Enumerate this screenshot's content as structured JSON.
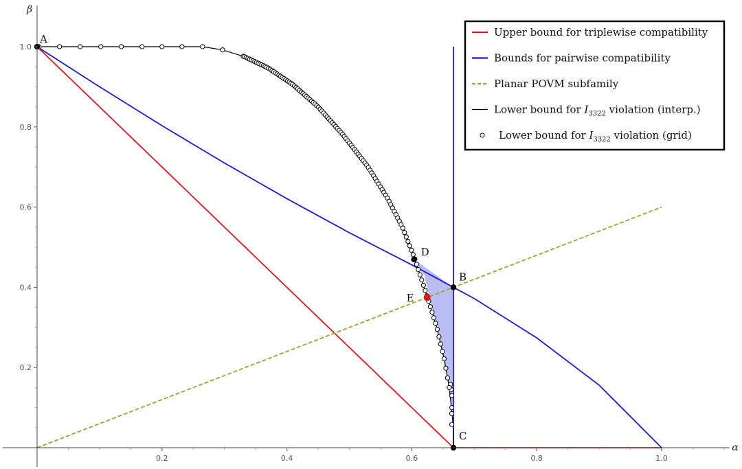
{
  "chart_data": {
    "type": "line",
    "title": "",
    "xlabel": "α",
    "ylabel": "β",
    "xlim": [
      0,
      1.12
    ],
    "ylim": [
      0,
      1.05
    ],
    "x_ticks": [
      "0.2",
      "0.4",
      "0.6",
      "0.8",
      "1.0"
    ],
    "y_ticks": [
      "0.2",
      "0.4",
      "0.6",
      "0.8",
      "1.0"
    ],
    "x_tick_values": [
      0.2,
      0.4,
      0.6,
      0.8,
      1.0
    ],
    "y_tick_values": [
      0.2,
      0.4,
      0.6,
      0.8,
      1.0
    ],
    "legend_position": "top-right",
    "colors": {
      "triplewise": "#e8141c",
      "pairwise": "#1a1ae0",
      "planar": "#8aad2c",
      "interp": "#000000",
      "shade": "#aeb0f2",
      "point_e": "#e8141c"
    },
    "series": [
      {
        "name": "Upper bound for triplewise compatibility",
        "style": "solid",
        "color_key": "triplewise",
        "points": [
          [
            0,
            1
          ],
          [
            0.6667,
            0
          ],
          [
            1.0,
            0
          ]
        ]
      },
      {
        "name": "Bounds for pairwise compatibility",
        "style": "solid",
        "color_key": "pairwise",
        "points": [
          [
            0,
            1
          ],
          [
            0.1,
            0.9
          ],
          [
            0.2,
            0.803
          ],
          [
            0.3,
            0.71
          ],
          [
            0.4,
            0.621
          ],
          [
            0.5,
            0.536
          ],
          [
            0.6,
            0.456
          ],
          [
            0.6667,
            0.4
          ],
          [
            0.7,
            0.372
          ],
          [
            0.8,
            0.274
          ],
          [
            0.9,
            0.156
          ],
          [
            1.0,
            0
          ]
        ],
        "extra_segments": [
          [
            [
              0.6667,
              0
            ],
            [
              0.6667,
              1.0
            ]
          ]
        ]
      },
      {
        "name": "Planar POVM subfamily",
        "style": "dashed",
        "color_key": "planar",
        "points": [
          [
            0,
            0
          ],
          [
            1.0,
            0.6
          ]
        ]
      },
      {
        "name": "Lower bound for I₃₃₂₂ violation (interp.)",
        "legend_main": "Lower bound for ",
        "legend_symbol": "I",
        "legend_sub": "3322",
        "legend_tail": " violation (interp.)",
        "style": "solid",
        "color_key": "interp",
        "points": [
          [
            0,
            1
          ],
          [
            0.265,
            1
          ],
          [
            0.297,
            0.992
          ],
          [
            0.332,
            0.975
          ],
          [
            0.37,
            0.947
          ],
          [
            0.41,
            0.905
          ],
          [
            0.45,
            0.85
          ],
          [
            0.49,
            0.78
          ],
          [
            0.53,
            0.7
          ],
          [
            0.56,
            0.625
          ],
          [
            0.585,
            0.55
          ],
          [
            0.605,
            0.47
          ],
          [
            0.625,
            0.375
          ],
          [
            0.64,
            0.3
          ],
          [
            0.652,
            0.22
          ],
          [
            0.66,
            0.15
          ],
          [
            0.664,
            0.09
          ],
          [
            0.666,
            0.06
          ],
          [
            0.667,
            0
          ]
        ]
      },
      {
        "name": "Lower bound for I₃₃₂₂ violation (grid)",
        "legend_main": "Lower bound for ",
        "legend_symbol": "I",
        "legend_sub": "3322",
        "legend_tail": " violation (grid)",
        "style": "markers",
        "color_key": "interp",
        "points": [
          [
            0.003,
            1.0
          ],
          [
            0.036,
            1.0
          ],
          [
            0.069,
            1.0
          ],
          [
            0.102,
            1.0
          ],
          [
            0.135,
            1.0
          ],
          [
            0.168,
            1.0
          ],
          [
            0.2,
            1.0
          ],
          [
            0.232,
            1.0
          ],
          [
            0.265,
            1.0
          ],
          [
            0.297,
            0.992
          ],
          [
            0.33,
            0.976
          ],
          [
            0.664,
            0.058
          ],
          [
            0.664,
            0.085
          ],
          [
            0.664,
            0.1
          ],
          [
            0.664,
            0.13
          ],
          [
            0.663,
            0.145
          ],
          [
            0.662,
            0.158
          ]
        ],
        "dense_segments": [
          {
            "from": 0.332,
            "to": 0.66,
            "count": 120
          }
        ]
      }
    ],
    "labeled_points": [
      {
        "label": "A",
        "x": 0.0,
        "y": 1.0,
        "color_key": "interp",
        "dx": 4,
        "dy": -6
      },
      {
        "label": "B",
        "x": 0.6667,
        "y": 0.4,
        "color_key": "interp",
        "dx": 8,
        "dy": -10
      },
      {
        "label": "C",
        "x": 0.6667,
        "y": 0.0,
        "color_key": "interp",
        "dx": 8,
        "dy": -12
      },
      {
        "label": "D",
        "x": 0.6035,
        "y": 0.4695,
        "color_key": "interp",
        "dx": 10,
        "dy": -6
      },
      {
        "label": "E",
        "x": 0.6245,
        "y": 0.3747,
        "color_key": "point_e",
        "dx": -30,
        "dy": 6
      }
    ],
    "shaded_region": {
      "color_key": "shade",
      "points": [
        [
          0.6035,
          0.4695
        ],
        [
          0.62,
          0.43
        ],
        [
          0.635,
          0.33
        ],
        [
          0.648,
          0.24
        ],
        [
          0.657,
          0.17
        ],
        [
          0.663,
          0.1
        ],
        [
          0.6667,
          0.06
        ],
        [
          0.6667,
          0.4
        ]
      ]
    }
  }
}
